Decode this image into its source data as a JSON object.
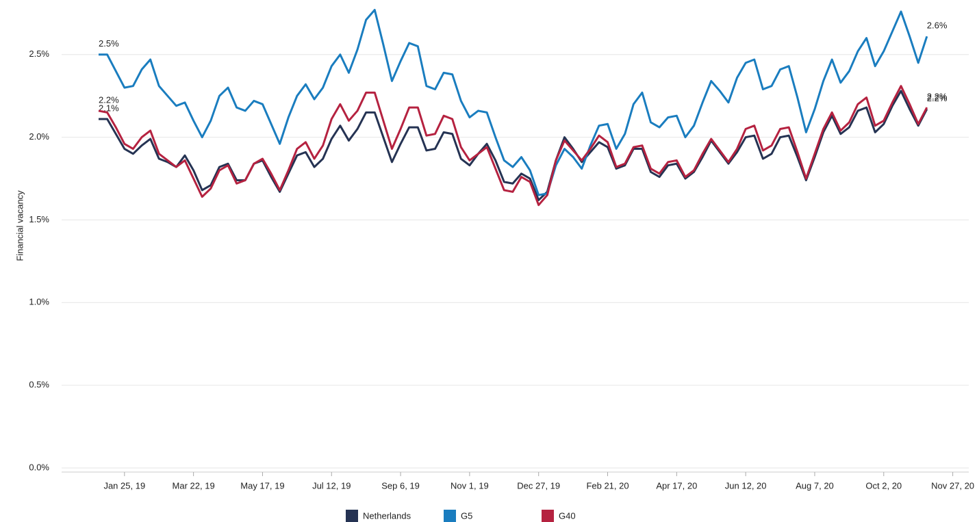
{
  "chart_data": {
    "type": "line",
    "y_label": "Financial vacancy",
    "grid": true,
    "legend": "bottom",
    "x": [
      "2019-01-04",
      "2019-01-11",
      "2019-01-18",
      "2019-01-25",
      "2019-02-01",
      "2019-02-08",
      "2019-02-15",
      "2019-02-22",
      "2019-03-01",
      "2019-03-08",
      "2019-03-15",
      "2019-03-22",
      "2019-03-29",
      "2019-04-05",
      "2019-04-12",
      "2019-04-19",
      "2019-04-26",
      "2019-05-03",
      "2019-05-10",
      "2019-05-17",
      "2019-05-24",
      "2019-05-31",
      "2019-06-07",
      "2019-06-14",
      "2019-06-21",
      "2019-06-28",
      "2019-07-05",
      "2019-07-12",
      "2019-07-19",
      "2019-07-26",
      "2019-08-02",
      "2019-08-09",
      "2019-08-16",
      "2019-08-23",
      "2019-08-30",
      "2019-09-06",
      "2019-09-13",
      "2019-09-20",
      "2019-09-27",
      "2019-10-04",
      "2019-10-11",
      "2019-10-18",
      "2019-10-25",
      "2019-11-01",
      "2019-11-08",
      "2019-11-15",
      "2019-11-22",
      "2019-11-29",
      "2019-12-06",
      "2019-12-13",
      "2019-12-20",
      "2019-12-27",
      "2020-01-03",
      "2020-01-10",
      "2020-01-17",
      "2020-01-24",
      "2020-01-31",
      "2020-02-07",
      "2020-02-14",
      "2020-02-21",
      "2020-02-28",
      "2020-03-06",
      "2020-03-13",
      "2020-03-20",
      "2020-03-27",
      "2020-04-03",
      "2020-04-10",
      "2020-04-17",
      "2020-04-24",
      "2020-05-01",
      "2020-05-08",
      "2020-05-15",
      "2020-05-22",
      "2020-05-29",
      "2020-06-05",
      "2020-06-12",
      "2020-06-19",
      "2020-06-26",
      "2020-07-03",
      "2020-07-10",
      "2020-07-17",
      "2020-07-24",
      "2020-07-31",
      "2020-08-07",
      "2020-08-14",
      "2020-08-21",
      "2020-08-28",
      "2020-09-04",
      "2020-09-11",
      "2020-09-18",
      "2020-09-25",
      "2020-10-02",
      "2020-10-09",
      "2020-10-16",
      "2020-10-23",
      "2020-10-30",
      "2020-11-06"
    ],
    "xlim": [
      "2018-12-05",
      "2020-12-10"
    ],
    "xticks": [
      {
        "value": "2019-01-25",
        "label": "Jan 25, 19"
      },
      {
        "value": "2019-03-22",
        "label": "Mar 22, 19"
      },
      {
        "value": "2019-05-17",
        "label": "May 17, 19"
      },
      {
        "value": "2019-07-12",
        "label": "Jul 12, 19"
      },
      {
        "value": "2019-09-06",
        "label": "Sep 6, 19"
      },
      {
        "value": "2019-11-01",
        "label": "Nov 1, 19"
      },
      {
        "value": "2019-12-27",
        "label": "Dec 27, 19"
      },
      {
        "value": "2020-02-21",
        "label": "Feb 21, 20"
      },
      {
        "value": "2020-04-17",
        "label": "Apr 17, 20"
      },
      {
        "value": "2020-06-12",
        "label": "Jun 12, 20"
      },
      {
        "value": "2020-08-07",
        "label": "Aug 7, 20"
      },
      {
        "value": "2020-10-02",
        "label": "Oct 2, 20"
      },
      {
        "value": "2020-11-27",
        "label": "Nov 27, 20"
      }
    ],
    "ylim": [
      0,
      2.83
    ],
    "yticks": [
      {
        "value": 0,
        "label": "0.0%"
      },
      {
        "value": 0.5,
        "label": "0.5%"
      },
      {
        "value": 1,
        "label": "1.0%"
      },
      {
        "value": 1.5,
        "label": "1.5%"
      },
      {
        "value": 2,
        "label": "2.0%"
      },
      {
        "value": 2.5,
        "label": "2.5%"
      }
    ],
    "series": [
      {
        "name": "Netherlands",
        "color": "#253353",
        "values": [
          2.11,
          2.11,
          2.02,
          1.93,
          1.9,
          1.95,
          1.99,
          1.87,
          1.85,
          1.82,
          1.89,
          1.8,
          1.68,
          1.71,
          1.82,
          1.84,
          1.74,
          1.74,
          1.84,
          1.86,
          1.76,
          1.67,
          1.78,
          1.89,
          1.91,
          1.82,
          1.87,
          1.99,
          2.07,
          1.98,
          2.05,
          2.15,
          2.15,
          2.0,
          1.85,
          1.96,
          2.06,
          2.06,
          1.92,
          1.93,
          2.03,
          2.02,
          1.87,
          1.83,
          1.9,
          1.96,
          1.86,
          1.73,
          1.72,
          1.78,
          1.75,
          1.62,
          1.67,
          1.86,
          2.0,
          1.93,
          1.85,
          1.91,
          1.97,
          1.94,
          1.81,
          1.83,
          1.93,
          1.93,
          1.79,
          1.76,
          1.83,
          1.84,
          1.75,
          1.79,
          1.88,
          1.98,
          1.91,
          1.84,
          1.91,
          2.0,
          2.01,
          1.87,
          1.9,
          2.0,
          2.01,
          1.88,
          1.74,
          1.88,
          2.03,
          2.13,
          2.02,
          2.06,
          2.16,
          2.18,
          2.03,
          2.08,
          2.19,
          2.28,
          2.17,
          2.07,
          2.17
        ],
        "value_labels": {
          "0": "2.1%",
          "96": "2.2%"
        }
      },
      {
        "name": "G5",
        "color": "#1a7dbf",
        "values": [
          2.5,
          2.5,
          2.4,
          2.3,
          2.31,
          2.41,
          2.47,
          2.31,
          2.25,
          2.19,
          2.21,
          2.1,
          2.0,
          2.1,
          2.25,
          2.3,
          2.18,
          2.16,
          2.22,
          2.2,
          2.08,
          1.96,
          2.12,
          2.25,
          2.32,
          2.23,
          2.3,
          2.43,
          2.5,
          2.39,
          2.53,
          2.71,
          2.77,
          2.56,
          2.34,
          2.46,
          2.57,
          2.55,
          2.31,
          2.29,
          2.39,
          2.38,
          2.22,
          2.12,
          2.16,
          2.15,
          2.0,
          1.86,
          1.82,
          1.88,
          1.8,
          1.65,
          1.66,
          1.83,
          1.93,
          1.88,
          1.81,
          1.95,
          2.07,
          2.08,
          1.93,
          2.02,
          2.2,
          2.27,
          2.09,
          2.06,
          2.12,
          2.13,
          2.0,
          2.07,
          2.21,
          2.34,
          2.28,
          2.21,
          2.36,
          2.45,
          2.47,
          2.29,
          2.31,
          2.41,
          2.43,
          2.24,
          2.03,
          2.17,
          2.34,
          2.47,
          2.33,
          2.4,
          2.52,
          2.6,
          2.43,
          2.52,
          2.64,
          2.76,
          2.61,
          2.45,
          2.61
        ],
        "value_labels": {
          "0": "2.5%",
          "96": "2.6%"
        }
      },
      {
        "name": "G40",
        "color": "#b52240",
        "values": [
          2.16,
          2.15,
          2.06,
          1.96,
          1.93,
          2.0,
          2.04,
          1.9,
          1.86,
          1.82,
          1.86,
          1.75,
          1.64,
          1.69,
          1.8,
          1.83,
          1.72,
          1.74,
          1.84,
          1.87,
          1.78,
          1.68,
          1.8,
          1.93,
          1.97,
          1.87,
          1.95,
          2.11,
          2.2,
          2.1,
          2.16,
          2.27,
          2.27,
          2.1,
          1.93,
          2.05,
          2.18,
          2.18,
          2.01,
          2.02,
          2.13,
          2.11,
          1.94,
          1.86,
          1.9,
          1.94,
          1.81,
          1.68,
          1.67,
          1.76,
          1.73,
          1.59,
          1.65,
          1.86,
          1.98,
          1.92,
          1.86,
          1.93,
          2.01,
          1.97,
          1.82,
          1.84,
          1.94,
          1.95,
          1.81,
          1.78,
          1.85,
          1.86,
          1.76,
          1.8,
          1.9,
          1.99,
          1.92,
          1.85,
          1.93,
          2.05,
          2.07,
          1.92,
          1.95,
          2.05,
          2.06,
          1.91,
          1.75,
          1.9,
          2.05,
          2.15,
          2.04,
          2.09,
          2.2,
          2.24,
          2.07,
          2.1,
          2.21,
          2.31,
          2.2,
          2.08,
          2.18
        ],
        "value_labels": {
          "0": "2.2%",
          "96": "2.2%"
        }
      }
    ]
  }
}
